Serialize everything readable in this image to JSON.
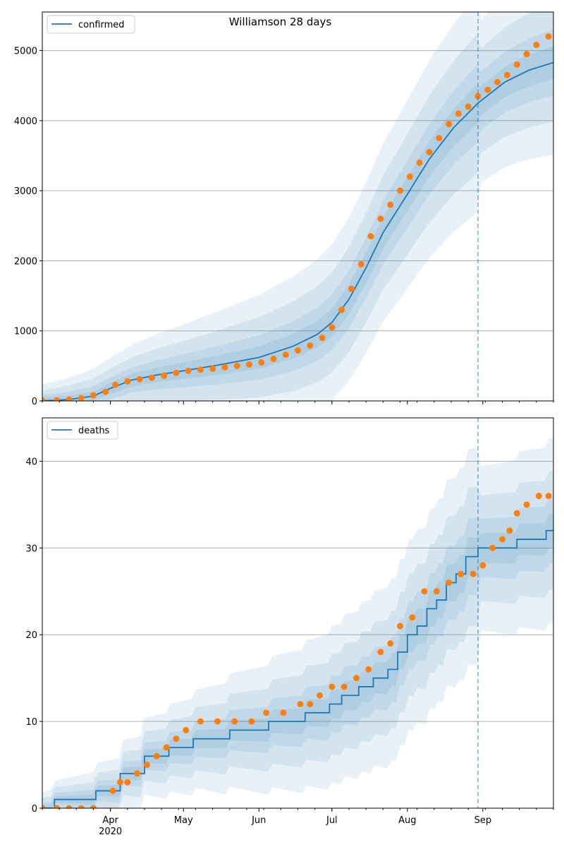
{
  "chart_data": [
    {
      "type": "line",
      "title": "Williamson 28 days",
      "legend": "top-left",
      "grid": "y",
      "xlim": [
        "2020-03-04",
        "2020-09-30"
      ],
      "ylim": [
        0,
        5550
      ],
      "yticks": [
        0,
        1000,
        2000,
        3000,
        4000,
        5000
      ],
      "forecast_start": "2020-08-30",
      "series": [
        {
          "name": "confirmed",
          "color": "#1f77b4",
          "kind": "fitted-line",
          "x": [
            "2020-03-04",
            "2020-03-15",
            "2020-03-25",
            "2020-04-01",
            "2020-04-10",
            "2020-04-20",
            "2020-05-01",
            "2020-05-15",
            "2020-06-01",
            "2020-06-15",
            "2020-06-25",
            "2020-07-01",
            "2020-07-08",
            "2020-07-15",
            "2020-07-22",
            "2020-08-01",
            "2020-08-10",
            "2020-08-20",
            "2020-08-30",
            "2020-09-10",
            "2020-09-20",
            "2020-09-30"
          ],
          "y": [
            0,
            20,
            70,
            180,
            300,
            370,
            430,
            510,
            620,
            780,
            950,
            1120,
            1450,
            1900,
            2400,
            2950,
            3450,
            3900,
            4250,
            4550,
            4720,
            4830
          ]
        },
        {
          "name": "observed confirmed",
          "color": "#ff7f0e",
          "kind": "points",
          "x": [
            "2020-03-04",
            "2020-03-10",
            "2020-03-15",
            "2020-03-20",
            "2020-03-25",
            "2020-03-30",
            "2020-04-03",
            "2020-04-08",
            "2020-04-13",
            "2020-04-18",
            "2020-04-23",
            "2020-04-28",
            "2020-05-03",
            "2020-05-08",
            "2020-05-13",
            "2020-05-18",
            "2020-05-23",
            "2020-05-28",
            "2020-06-02",
            "2020-06-07",
            "2020-06-12",
            "2020-06-17",
            "2020-06-22",
            "2020-06-27",
            "2020-07-01",
            "2020-07-05",
            "2020-07-09",
            "2020-07-13",
            "2020-07-17",
            "2020-07-21",
            "2020-07-25",
            "2020-07-29",
            "2020-08-02",
            "2020-08-06",
            "2020-08-10",
            "2020-08-14",
            "2020-08-18",
            "2020-08-22",
            "2020-08-26",
            "2020-08-30",
            "2020-09-03",
            "2020-09-07",
            "2020-09-11",
            "2020-09-15",
            "2020-09-19",
            "2020-09-23",
            "2020-09-28"
          ],
          "y": [
            5,
            10,
            20,
            40,
            80,
            130,
            230,
            280,
            310,
            330,
            360,
            400,
            430,
            445,
            460,
            480,
            500,
            520,
            550,
            600,
            660,
            720,
            790,
            900,
            1050,
            1300,
            1600,
            1950,
            2350,
            2600,
            2800,
            3000,
            3200,
            3400,
            3550,
            3750,
            3950,
            4100,
            4200,
            4350,
            4440,
            4550,
            4650,
            4800,
            4950,
            5080,
            5200
          ]
        }
      ]
    },
    {
      "type": "line",
      "legend": "top-left",
      "grid": "y",
      "xlim": [
        "2020-03-04",
        "2020-09-30"
      ],
      "ylim": [
        0,
        45
      ],
      "yticks": [
        0,
        10,
        20,
        30,
        40
      ],
      "xticks": [
        "Apr",
        "May",
        "Jun",
        "Jul",
        "Aug",
        "Sep"
      ],
      "xtick_dates": [
        "2020-04-01",
        "2020-05-01",
        "2020-06-01",
        "2020-07-01",
        "2020-08-01",
        "2020-09-01"
      ],
      "xtick_sublabel": "2020",
      "forecast_start": "2020-08-30",
      "series": [
        {
          "name": "deaths",
          "color": "#1f77b4",
          "kind": "step-line",
          "x": [
            "2020-03-04",
            "2020-03-09",
            "2020-03-26",
            "2020-04-05",
            "2020-04-15",
            "2020-04-25",
            "2020-05-05",
            "2020-05-20",
            "2020-06-05",
            "2020-06-20",
            "2020-06-30",
            "2020-07-05",
            "2020-07-12",
            "2020-07-18",
            "2020-07-24",
            "2020-07-28",
            "2020-08-01",
            "2020-08-05",
            "2020-08-09",
            "2020-08-13",
            "2020-08-17",
            "2020-08-21",
            "2020-08-25",
            "2020-08-30",
            "2020-09-04",
            "2020-09-15",
            "2020-09-27"
          ],
          "y": [
            0,
            1,
            2,
            4,
            6,
            7,
            8,
            9,
            10,
            11,
            12,
            13,
            14,
            15,
            16,
            18,
            20,
            21,
            23,
            24,
            26,
            27,
            29,
            30,
            30,
            31,
            32
          ]
        },
        {
          "name": "observed deaths",
          "color": "#ff7f0e",
          "kind": "points",
          "x": [
            "2020-03-04",
            "2020-03-10",
            "2020-03-15",
            "2020-03-20",
            "2020-03-25",
            "2020-04-02",
            "2020-04-05",
            "2020-04-08",
            "2020-04-12",
            "2020-04-16",
            "2020-04-20",
            "2020-04-24",
            "2020-04-28",
            "2020-05-02",
            "2020-05-08",
            "2020-05-15",
            "2020-05-22",
            "2020-05-29",
            "2020-06-04",
            "2020-06-11",
            "2020-06-18",
            "2020-06-22",
            "2020-06-26",
            "2020-07-01",
            "2020-07-06",
            "2020-07-11",
            "2020-07-16",
            "2020-07-21",
            "2020-07-25",
            "2020-07-29",
            "2020-08-03",
            "2020-08-08",
            "2020-08-13",
            "2020-08-18",
            "2020-08-23",
            "2020-08-28",
            "2020-09-01",
            "2020-09-05",
            "2020-09-09",
            "2020-09-12",
            "2020-09-15",
            "2020-09-19",
            "2020-09-24",
            "2020-09-28"
          ],
          "y": [
            0,
            0,
            0,
            0,
            0,
            2,
            3,
            3,
            4,
            5,
            6,
            7,
            8,
            9,
            10,
            10,
            10,
            10,
            11,
            11,
            12,
            12,
            13,
            14,
            14,
            15,
            16,
            18,
            19,
            21,
            22,
            25,
            25,
            26,
            27,
            27,
            28,
            30,
            31,
            32,
            34,
            35,
            36,
            36
          ]
        }
      ]
    }
  ]
}
